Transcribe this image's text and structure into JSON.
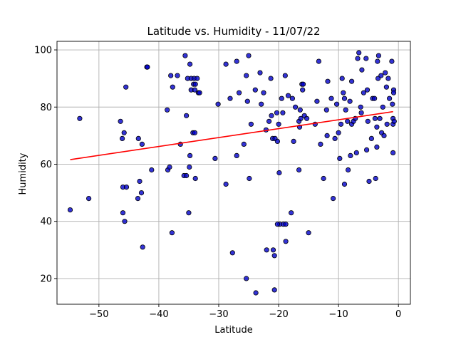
{
  "chart_data": {
    "type": "scatter",
    "title": "Latitude vs. Humidity - 11/07/22",
    "xlabel": "Latitude",
    "ylabel": "Humidity",
    "xlim": [
      -57,
      2
    ],
    "ylim": [
      11,
      103
    ],
    "xticks": [
      -50,
      -40,
      -30,
      -20,
      -10,
      0
    ],
    "xtick_labels": [
      "−50",
      "−40",
      "−30",
      "−20",
      "−10",
      "0"
    ],
    "yticks": [
      20,
      40,
      60,
      80,
      100
    ],
    "ytick_labels": [
      "20",
      "40",
      "60",
      "80",
      "100"
    ],
    "grid": true,
    "marker_color": "#0000cc",
    "marker_edge_color": "#000000",
    "regression_color": "#ff0000",
    "regression_line": {
      "x": [
        -54.8,
        -0.9
      ],
      "y": [
        61.6,
        78.4
      ]
    },
    "points": [
      [
        -54.8,
        44
      ],
      [
        -53.2,
        76
      ],
      [
        -51.7,
        48
      ],
      [
        -46.4,
        75
      ],
      [
        -46.1,
        69
      ],
      [
        -45.8,
        71
      ],
      [
        -46.0,
        52
      ],
      [
        -45.4,
        52
      ],
      [
        -46.0,
        43
      ],
      [
        -45.7,
        40
      ],
      [
        -45.5,
        87
      ],
      [
        -43.4,
        69
      ],
      [
        -43.5,
        48
      ],
      [
        -43.2,
        54
      ],
      [
        -42.8,
        67
      ],
      [
        -42.9,
        50
      ],
      [
        -42.7,
        31
      ],
      [
        -42.0,
        94
      ],
      [
        -41.9,
        94
      ],
      [
        -41.2,
        58
      ],
      [
        -38.6,
        79
      ],
      [
        -38.5,
        58
      ],
      [
        -38.2,
        59
      ],
      [
        -38.0,
        91
      ],
      [
        -37.7,
        87
      ],
      [
        -37.8,
        36
      ],
      [
        -36.9,
        91
      ],
      [
        -36.4,
        67
      ],
      [
        -35.8,
        56
      ],
      [
        -35.6,
        98
      ],
      [
        -35.4,
        56
      ],
      [
        -35.4,
        77
      ],
      [
        -35.2,
        90
      ],
      [
        -34.6,
        90
      ],
      [
        -34.1,
        90
      ],
      [
        -33.6,
        90
      ],
      [
        -34.8,
        95
      ],
      [
        -34.6,
        86
      ],
      [
        -34.0,
        86
      ],
      [
        -34.2,
        88
      ],
      [
        -33.9,
        88
      ],
      [
        -33.4,
        85
      ],
      [
        -33.2,
        85
      ],
      [
        -34.3,
        71
      ],
      [
        -34.0,
        71
      ],
      [
        -34.8,
        63
      ],
      [
        -34.9,
        59
      ],
      [
        -35.0,
        43
      ],
      [
        -33.9,
        55
      ],
      [
        -30.6,
        62
      ],
      [
        -30.1,
        81
      ],
      [
        -28.8,
        95
      ],
      [
        -28.8,
        53
      ],
      [
        -28.1,
        83
      ],
      [
        -27.7,
        29
      ],
      [
        -27.0,
        96
      ],
      [
        -27.0,
        63
      ],
      [
        -26.6,
        85
      ],
      [
        -25.8,
        67
      ],
      [
        -25.4,
        91
      ],
      [
        -25.2,
        82
      ],
      [
        -25.0,
        98
      ],
      [
        -24.9,
        55
      ],
      [
        -24.6,
        74
      ],
      [
        -25.4,
        20
      ],
      [
        -23.9,
        86
      ],
      [
        -23.8,
        15
      ],
      [
        -23.1,
        92
      ],
      [
        -22.9,
        81
      ],
      [
        -22.5,
        85
      ],
      [
        -22.1,
        72
      ],
      [
        -22.0,
        30
      ],
      [
        -21.6,
        75
      ],
      [
        -21.3,
        90
      ],
      [
        -21.2,
        77
      ],
      [
        -21.0,
        69
      ],
      [
        -20.6,
        69
      ],
      [
        -20.9,
        30
      ],
      [
        -20.7,
        28
      ],
      [
        -20.7,
        16
      ],
      [
        -20.3,
        78
      ],
      [
        -20.2,
        68
      ],
      [
        -20.0,
        74
      ],
      [
        -19.9,
        57
      ],
      [
        -19.8,
        39
      ],
      [
        -20.2,
        39
      ],
      [
        -19.5,
        83
      ],
      [
        -19.3,
        78
      ],
      [
        -19.2,
        39
      ],
      [
        -18.9,
        91
      ],
      [
        -18.8,
        39
      ],
      [
        -18.8,
        33
      ],
      [
        -18.4,
        84
      ],
      [
        -17.9,
        43
      ],
      [
        -17.7,
        83
      ],
      [
        -17.5,
        68
      ],
      [
        -17.2,
        80
      ],
      [
        -16.6,
        75
      ],
      [
        -16.6,
        58
      ],
      [
        -16.5,
        73
      ],
      [
        -16.4,
        79
      ],
      [
        -16.3,
        76
      ],
      [
        -16.1,
        88
      ],
      [
        -16.0,
        86
      ],
      [
        -15.9,
        88
      ],
      [
        -15.7,
        77
      ],
      [
        -15.3,
        76
      ],
      [
        -15.0,
        36
      ],
      [
        -13.9,
        74
      ],
      [
        -13.6,
        82
      ],
      [
        -13.3,
        96
      ],
      [
        -13.0,
        67
      ],
      [
        -12.5,
        55
      ],
      [
        -12.0,
        79
      ],
      [
        -11.9,
        70
      ],
      [
        -11.8,
        89
      ],
      [
        -11.2,
        83
      ],
      [
        -10.9,
        48
      ],
      [
        -10.6,
        69
      ],
      [
        -10.3,
        81
      ],
      [
        -10.0,
        71
      ],
      [
        -9.8,
        62
      ],
      [
        -9.6,
        74
      ],
      [
        -9.4,
        90
      ],
      [
        -9.2,
        85
      ],
      [
        -9.0,
        83
      ],
      [
        -9.0,
        53
      ],
      [
        -8.8,
        79
      ],
      [
        -8.5,
        75
      ],
      [
        -8.4,
        58
      ],
      [
        -8.1,
        82
      ],
      [
        -8.0,
        63
      ],
      [
        -7.8,
        74
      ],
      [
        -7.8,
        89
      ],
      [
        -7.5,
        75
      ],
      [
        -7.2,
        76
      ],
      [
        -7.0,
        64
      ],
      [
        -6.8,
        97
      ],
      [
        -6.6,
        99
      ],
      [
        -6.3,
        80
      ],
      [
        -6.2,
        78
      ],
      [
        -6.1,
        93
      ],
      [
        -5.8,
        85
      ],
      [
        -5.4,
        97
      ],
      [
        -5.3,
        65
      ],
      [
        -5.2,
        86
      ],
      [
        -5.1,
        75
      ],
      [
        -4.9,
        54
      ],
      [
        -4.5,
        69
      ],
      [
        -4.3,
        83
      ],
      [
        -4.0,
        83
      ],
      [
        -3.9,
        76
      ],
      [
        -3.8,
        55
      ],
      [
        -3.6,
        66
      ],
      [
        -3.6,
        73
      ],
      [
        -3.5,
        96
      ],
      [
        -3.4,
        90
      ],
      [
        -3.3,
        98
      ],
      [
        -3.1,
        76
      ],
      [
        -2.9,
        91
      ],
      [
        -2.8,
        71
      ],
      [
        -2.6,
        80
      ],
      [
        -2.4,
        70
      ],
      [
        -2.2,
        92
      ],
      [
        -2.0,
        87
      ],
      [
        -1.9,
        74
      ],
      [
        -1.7,
        90
      ],
      [
        -1.5,
        83
      ],
      [
        -1.1,
        96
      ],
      [
        -1.0,
        81
      ],
      [
        -0.9,
        76
      ],
      [
        -0.9,
        74
      ],
      [
        -0.9,
        64
      ],
      [
        -0.8,
        86
      ],
      [
        -0.8,
        85
      ],
      [
        -0.7,
        75
      ]
    ]
  }
}
